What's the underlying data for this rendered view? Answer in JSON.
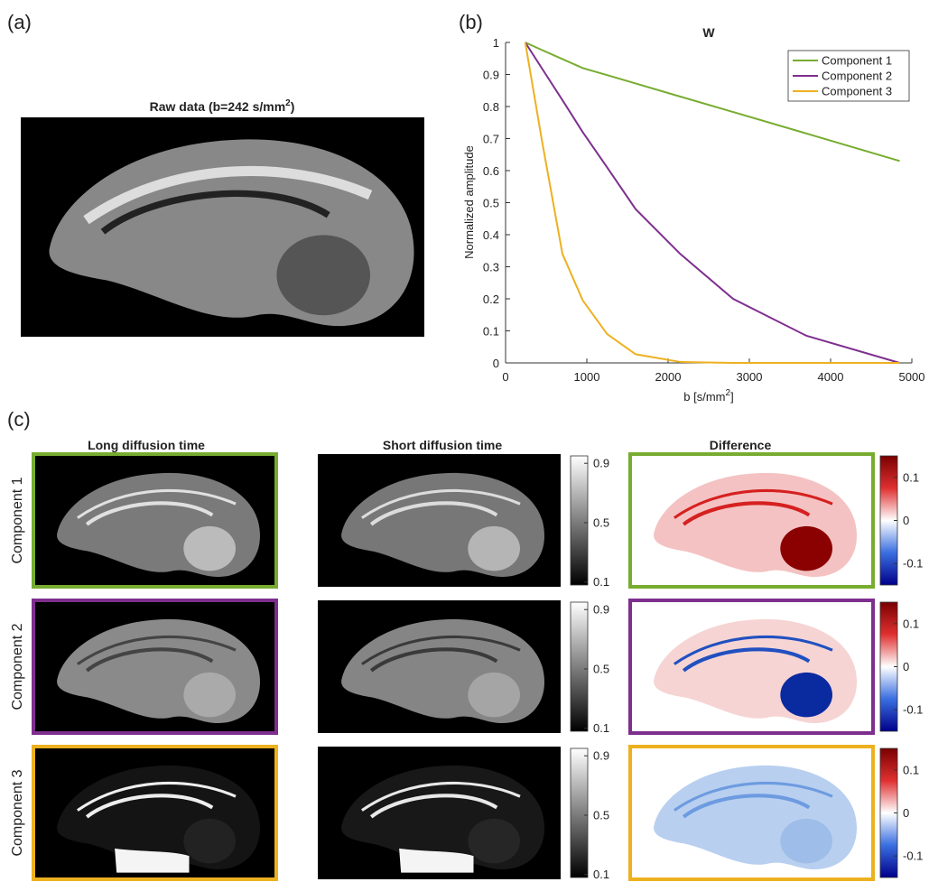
{
  "panel_a": {
    "label": "(a)",
    "title": "Raw data (b=242 s/mm",
    "title_sup": "2",
    "title_end": ")"
  },
  "chart_data": {
    "type": "line",
    "panel_label": "(b)",
    "title": "W",
    "x_label": "b [s/mm",
    "x_label_sup": "2",
    "x_label_end": "]",
    "y_label": "Normalized amplitude",
    "x": [
      242,
      450,
      700,
      950,
      1250,
      1600,
      2150,
      2800,
      3700,
      4850
    ],
    "series": [
      {
        "name": "Component 1",
        "color": "#77ac30",
        "values": [
          1,
          0.976,
          0.948,
          0.92,
          0.898,
          0.872,
          0.831,
          0.783,
          0.716,
          0.63
        ]
      },
      {
        "name": "Component 2",
        "color": "#7e2f8e",
        "values": [
          1,
          0.918,
          0.82,
          0.72,
          0.61,
          0.48,
          0.34,
          0.2,
          0.085,
          0
        ]
      },
      {
        "name": "Component 3",
        "color": "#edb120",
        "values": [
          1,
          0.69,
          0.34,
          0.195,
          0.09,
          0.027,
          0.003,
          0,
          0,
          0
        ]
      }
    ],
    "xlim": [
      0,
      5000
    ],
    "xticks": [
      0,
      1000,
      2000,
      3000,
      4000,
      5000
    ],
    "ylim": [
      0,
      1
    ],
    "yticks": [
      0,
      0.1,
      0.2,
      0.3,
      0.4,
      0.5,
      0.6,
      0.7,
      0.8,
      0.9,
      1
    ],
    "legend": "upper right"
  },
  "panel_c": {
    "label": "(c)",
    "columns": [
      "Long diffusion time",
      "Short diffusion time",
      "Difference"
    ],
    "rows": [
      {
        "name": "Component 1",
        "color": "#77ac30"
      },
      {
        "name": "Component 2",
        "color": "#7e2f8e"
      },
      {
        "name": "Component 3",
        "color": "#edb120"
      }
    ],
    "gray_colorbar": {
      "lim": [
        0.08,
        0.95
      ],
      "ticks": [
        0.1,
        0.5,
        0.9
      ]
    },
    "diff_colorbar": {
      "lim": [
        -0.15,
        0.15
      ],
      "ticks": [
        -0.1,
        0,
        0.1
      ]
    }
  }
}
